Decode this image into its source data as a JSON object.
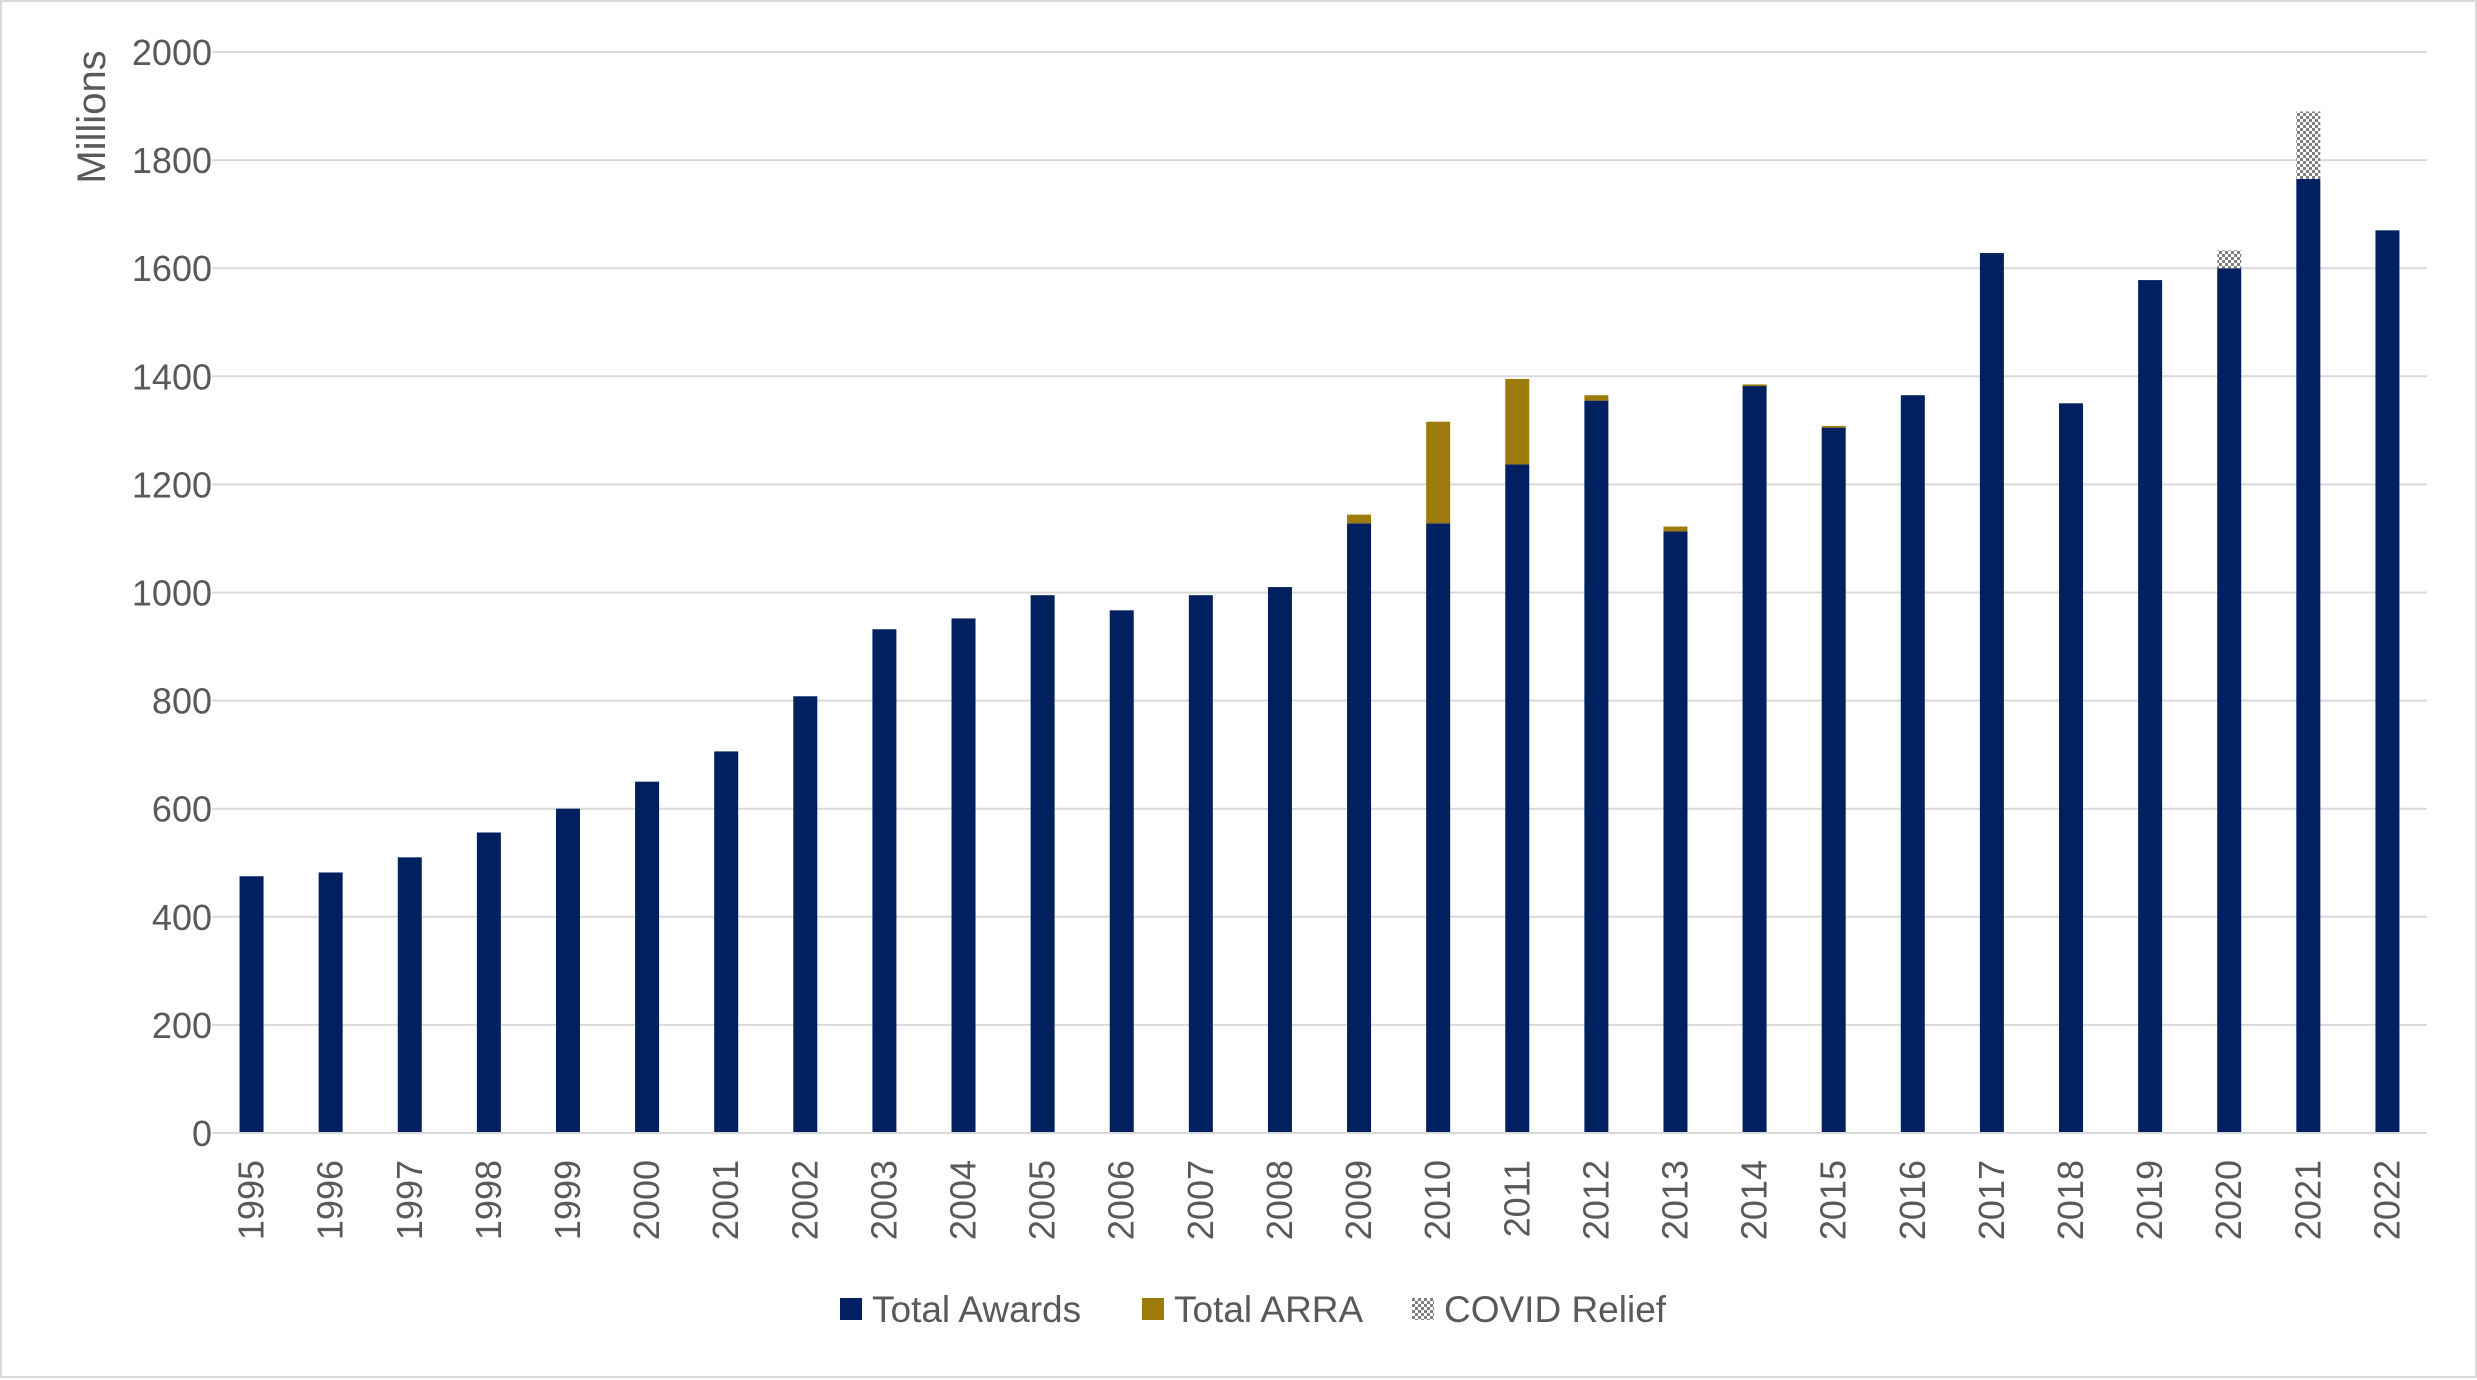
{
  "chart_data": {
    "type": "bar",
    "stacked": true,
    "title": "",
    "xlabel": "",
    "ylabel": "Millions",
    "ylim": [
      0,
      2000
    ],
    "yticks": [
      0,
      200,
      400,
      600,
      800,
      1000,
      1200,
      1400,
      1600,
      1800,
      2000
    ],
    "grid": true,
    "legend_position": "bottom",
    "categories": [
      "1995",
      "1996",
      "1997",
      "1998",
      "1999",
      "2000",
      "2001",
      "2002",
      "2003",
      "2004",
      "2005",
      "2006",
      "2007",
      "2008",
      "2009",
      "2010",
      "2011",
      "2012",
      "2013",
      "2014",
      "2015",
      "2016",
      "2017",
      "2018",
      "2019",
      "2020",
      "2021",
      "2022"
    ],
    "series": [
      {
        "name": "Total Awards",
        "color": "#002060",
        "pattern": "solid",
        "values": [
          475,
          482,
          510,
          556,
          600,
          650,
          706,
          808,
          932,
          952,
          995,
          967,
          995,
          1010,
          1128,
          1128,
          1237,
          1355,
          1113,
          1382,
          1305,
          1365,
          1628,
          1350,
          1578,
          1600,
          1765,
          1670
        ]
      },
      {
        "name": "Total ARRA",
        "color": "#9C7A0C",
        "pattern": "solid",
        "values": [
          0,
          0,
          0,
          0,
          0,
          0,
          0,
          0,
          0,
          0,
          0,
          0,
          0,
          0,
          16,
          188,
          158,
          10,
          9,
          3,
          3,
          0,
          0,
          0,
          0,
          0,
          0,
          0
        ]
      },
      {
        "name": "COVID Relief",
        "color": "#7f7f7f",
        "pattern": "dotted",
        "values": [
          0,
          0,
          0,
          0,
          0,
          0,
          0,
          0,
          0,
          0,
          0,
          0,
          0,
          0,
          0,
          0,
          0,
          0,
          0,
          0,
          0,
          0,
          0,
          0,
          0,
          33,
          125,
          0
        ]
      }
    ]
  }
}
